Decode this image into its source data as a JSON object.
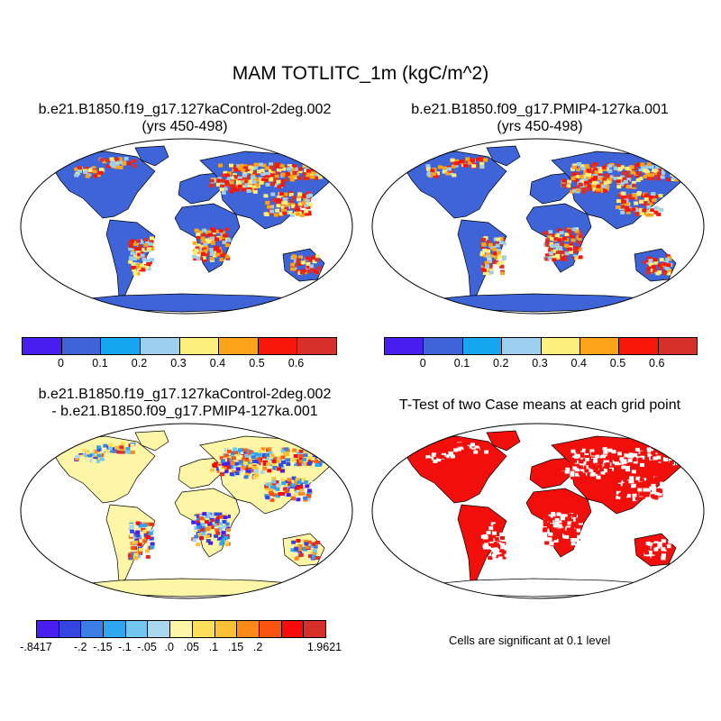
{
  "title": "MAM TOTLITC_1m (kgC/m^2)",
  "panels": [
    {
      "title_lines": [
        "b.e21.B1850.f19_g17.127kaControl-2deg.002",
        "(yrs 450-498)"
      ]
    },
    {
      "title_lines": [
        "b.e21.B1850.f09_g17.PMIP4-127ka.001",
        "(yrs 450-498)"
      ]
    },
    {
      "title_lines": [
        "b.e21.B1850.f19_g17.127kaControl-2deg.002",
        "- b.e21.B1850.f09_g17.PMIP4-127ka.001"
      ]
    },
    {
      "title_lines": [
        "T-Test of two Case means at each grid point"
      ]
    }
  ],
  "colorbar_top": {
    "colors": [
      "#4a1ef0",
      "#3e64d8",
      "#16a6f0",
      "#9dcfee",
      "#fdf07e",
      "#fda41b",
      "#f81708",
      "#d7302a"
    ],
    "labels": [
      "0",
      "0.1",
      "0.2",
      "0.3",
      "0.4",
      "0.5",
      "0.6"
    ]
  },
  "colorbar_diff": {
    "colors": [
      "#4a1ef0",
      "#3545e0",
      "#3a7ee6",
      "#31a6f0",
      "#74c7f1",
      "#a9d8ee",
      "#fdf6a6",
      "#fddf5a",
      "#fdbf33",
      "#fc8a18",
      "#fb5312",
      "#f80b0b",
      "#d7302a"
    ],
    "labels": [
      "-.8417",
      "-.2",
      "-.15",
      "-.1",
      "-.05",
      ".0",
      ".05",
      ".1",
      ".15",
      ".2",
      "1.9621"
    ]
  },
  "note": "Cells are significant at 0.1 level",
  "colors": {
    "ocean": "#ffffff",
    "land_low": "#3e64d8",
    "antarctica_diff": "#fdf6a6",
    "significant": "#f20f0b"
  }
}
